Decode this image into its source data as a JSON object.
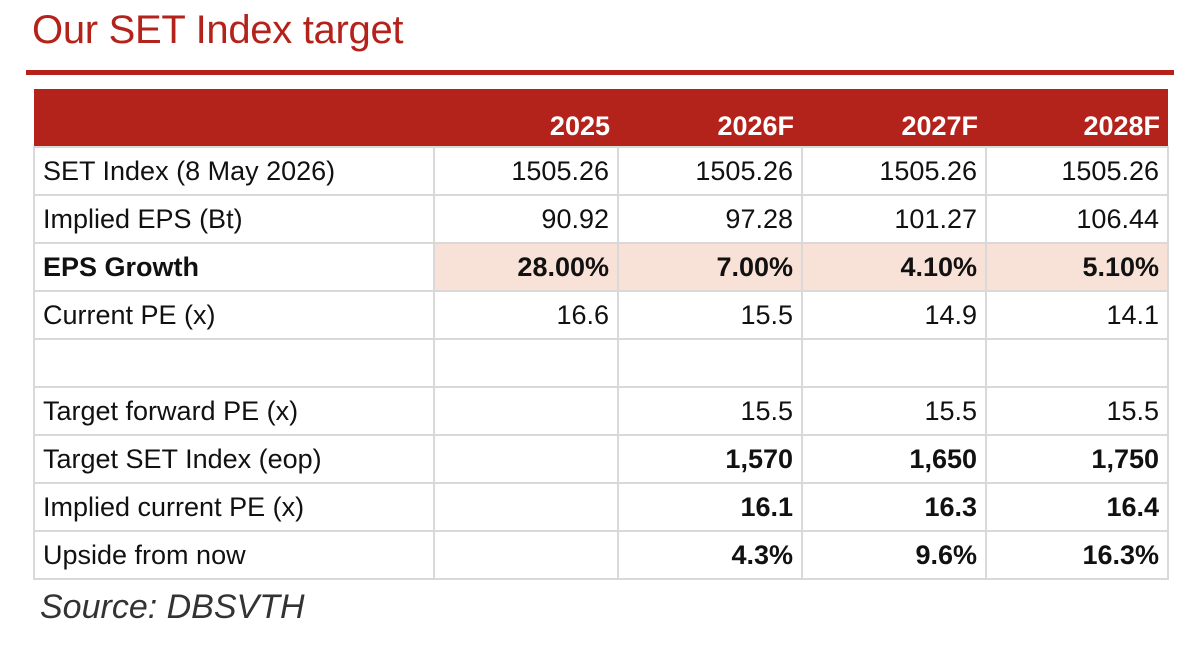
{
  "title": "Our SET Index target",
  "colors": {
    "accent": "#b4231b",
    "growth_highlight": "#f8e1d6"
  },
  "table": {
    "headers": [
      "",
      "2025",
      "2026F",
      "2027F",
      "2028F"
    ],
    "rows": [
      {
        "label": "SET Index (8 May 2026)",
        "values": [
          "1505.26",
          "1505.26",
          "1505.26",
          "1505.26"
        ]
      },
      {
        "label": "Implied EPS (Bt)",
        "values": [
          "90.92",
          "97.28",
          "101.27",
          "106.44"
        ]
      },
      {
        "label": "EPS Growth",
        "values": [
          "28.00%",
          "7.00%",
          "4.10%",
          "5.10%"
        ]
      },
      {
        "label": "Current PE (x)",
        "values": [
          "16.6",
          "15.5",
          "14.9",
          "14.1"
        ]
      },
      {
        "label": "",
        "values": [
          "",
          "",
          "",
          ""
        ]
      },
      {
        "label": "Target forward PE (x)",
        "values": [
          "",
          "15.5",
          "15.5",
          "15.5"
        ]
      },
      {
        "label": "Target SET Index (eop)",
        "values": [
          "",
          "1,570",
          "1,650",
          "1,750"
        ]
      },
      {
        "label": "Implied current PE (x)",
        "values": [
          "",
          "16.1",
          "16.3",
          "16.4"
        ]
      },
      {
        "label": "Upside from now",
        "values": [
          "",
          "4.3%",
          "9.6%",
          "16.3%"
        ]
      }
    ]
  },
  "source": "Source: DBSVTH"
}
